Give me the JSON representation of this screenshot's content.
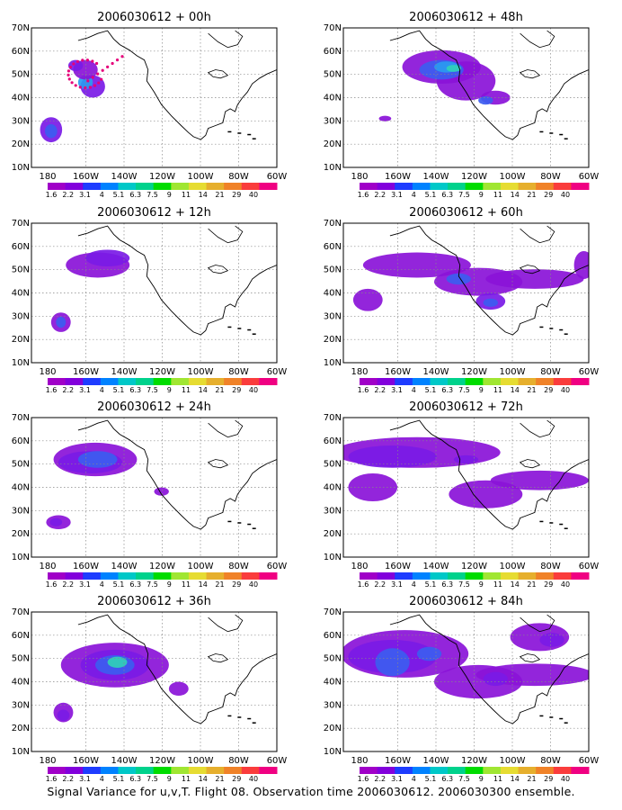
{
  "figure": {
    "caption": "Signal Variance for u,v,T. Flight 08. Observation time 2006030612. 2006030300 ensemble.",
    "lat_labels": [
      "70N",
      "60N",
      "50N",
      "40N",
      "30N",
      "20N",
      "10N"
    ],
    "lon_labels": [
      "180",
      "160W",
      "140W",
      "120W",
      "100W",
      "80W",
      "60W"
    ],
    "colorbar": {
      "labels": [
        "1.6",
        "2.2",
        "3.1",
        "4",
        "5.1",
        "6.3",
        "7.5",
        "9",
        "11",
        "14",
        "21",
        "29",
        "40"
      ],
      "colors": [
        "#a000c8",
        "#8200dc",
        "#1e3cff",
        "#0082ff",
        "#00c8c8",
        "#00d28c",
        "#00dc00",
        "#a0e632",
        "#e6dc32",
        "#e6af2d",
        "#f08228",
        "#fa3c3c",
        "#f00082"
      ]
    },
    "panels": [
      {
        "title": "2006030612 + 00h"
      },
      {
        "title": "2006030612 + 48h"
      },
      {
        "title": "2006030612 + 12h"
      },
      {
        "title": "2006030612 + 60h"
      },
      {
        "title": "2006030612 + 24h"
      },
      {
        "title": "2006030612 + 72h"
      },
      {
        "title": "2006030612 + 36h"
      },
      {
        "title": "2006030612 + 84h"
      }
    ]
  }
}
